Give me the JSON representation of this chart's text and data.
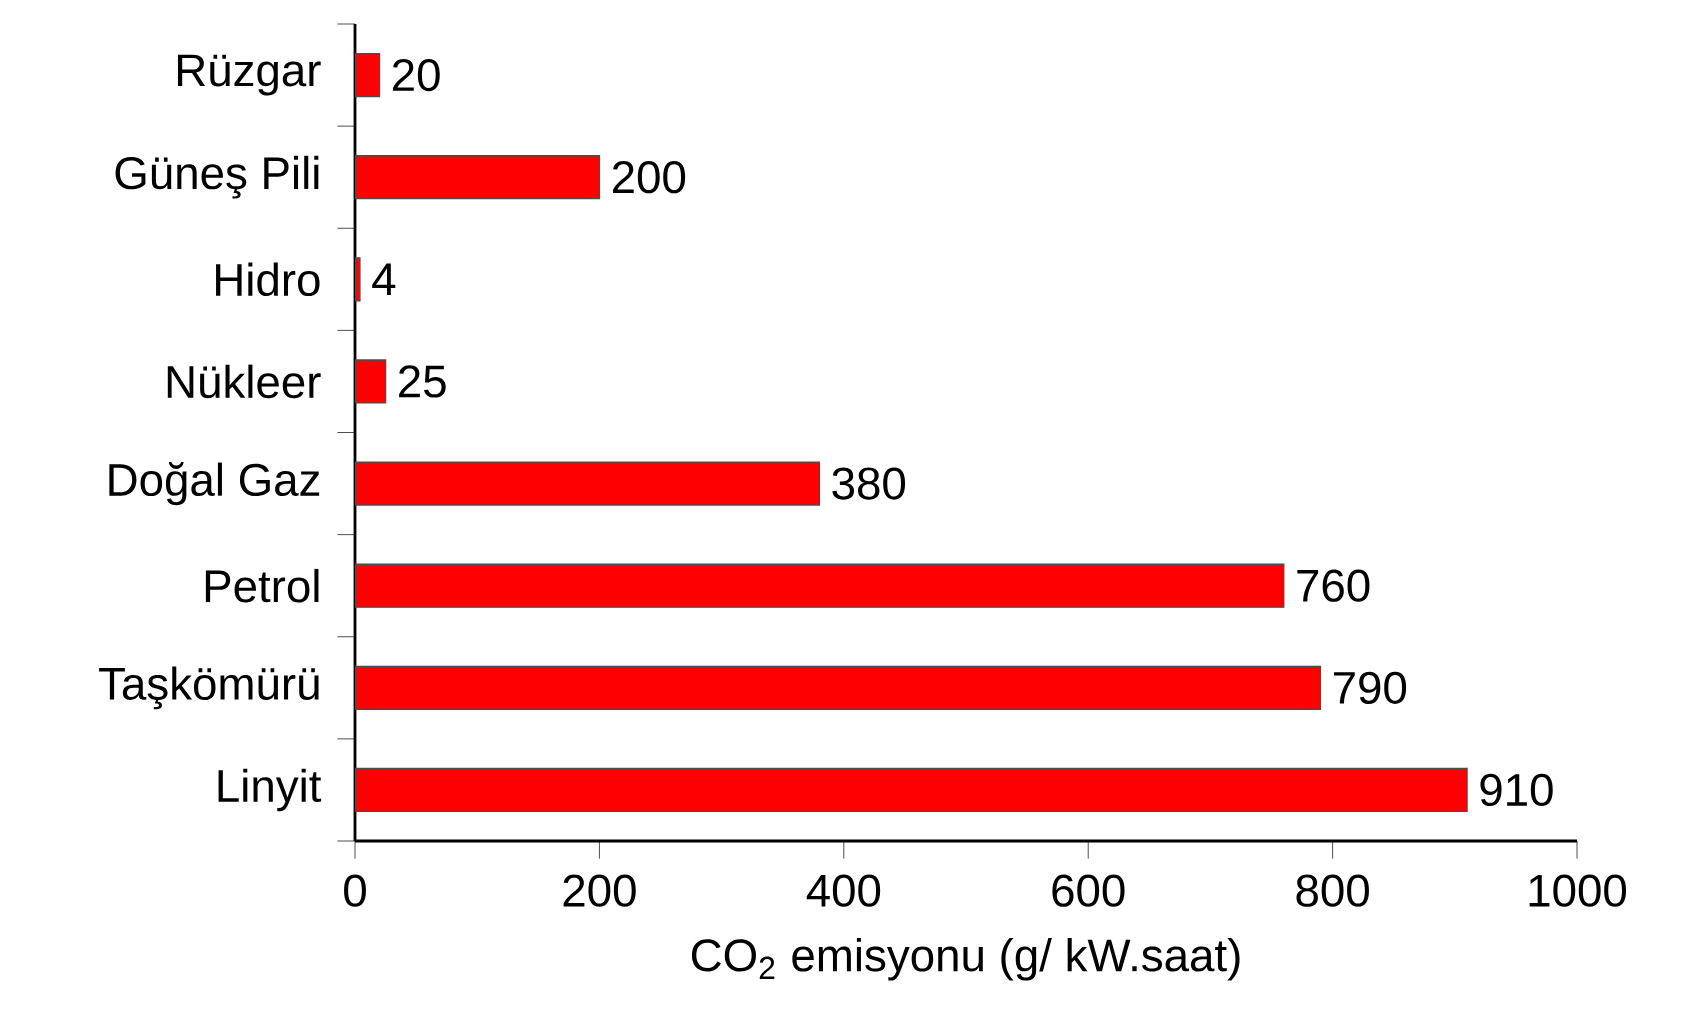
{
  "chart_data": {
    "type": "bar",
    "orientation": "horizontal",
    "xlabel": "CO$_{2}$ emisyonu (g/ kW.saat)",
    "categories": [
      "Rüzgar",
      "Güneş Pili",
      "Hidro",
      "Nükleer",
      "Doğal Gaz",
      "Petrol",
      "Taşkömürü",
      "Linyit"
    ],
    "values": [
      20,
      200,
      4,
      25,
      380,
      760,
      790,
      910
    ],
    "color": "#ff0000",
    "xlim": [
      0,
      1000
    ],
    "xticks": [
      0,
      200,
      400,
      600,
      800,
      1000
    ],
    "data_labels": true,
    "grid": false
  }
}
